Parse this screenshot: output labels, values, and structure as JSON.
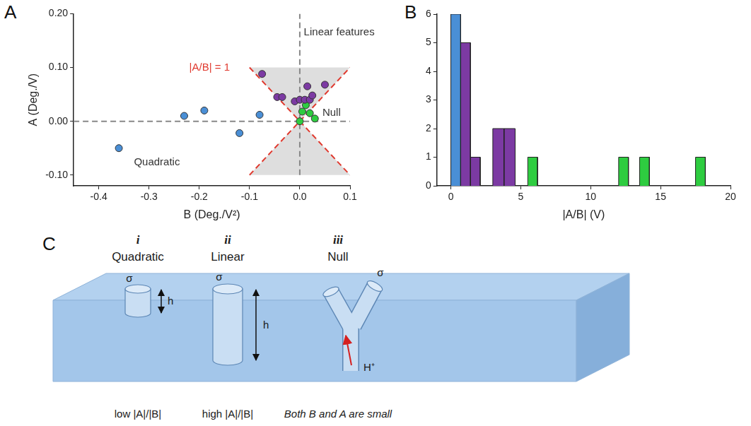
{
  "chart_data": [
    {
      "panel": "A",
      "type": "scatter",
      "x_label": "B (Deg./V²)",
      "y_label": "A (Deg./V)",
      "xlim": [
        -0.45,
        0.1
      ],
      "xticks": [
        -0.4,
        -0.3,
        -0.2,
        -0.1,
        {
          "value": 0,
          "label": "0.0"
        },
        0.1
      ],
      "ylim": [
        -0.12,
        0.2
      ],
      "yticks": [
        {
          "value": -0.1,
          "label": "-0.10"
        },
        {
          "value": 0,
          "label": "0.00"
        },
        {
          "value": 0.1,
          "label": "0.10"
        },
        {
          "value": 0.2,
          "label": "0.20"
        }
      ],
      "grid": false,
      "series": [
        {
          "color": "#4a8fd6",
          "x": [
            -0.36,
            -0.23,
            -0.19,
            -0.12,
            -0.08
          ],
          "y": [
            -0.05,
            0.01,
            0.02,
            -0.022,
            0.012
          ]
        },
        {
          "color": "#7c3aa3",
          "x": [
            -0.075,
            -0.045,
            -0.035,
            -0.01,
            0.0,
            0.01,
            0.015,
            0.02,
            0.025,
            0.05
          ],
          "y": [
            0.088,
            0.045,
            0.045,
            0.037,
            0.04,
            0.04,
            0.065,
            0.04,
            0.048,
            0.068
          ]
        },
        {
          "color": "#2ecc40",
          "x": [
            0.0,
            0.005,
            0.012,
            0.02,
            0.03
          ],
          "y": [
            0.0,
            0.018,
            0.03,
            0.015,
            0.005
          ]
        }
      ],
      "reference_lines": [
        {
          "x": [
            -0.1,
            0.1
          ],
          "y": [
            0.1,
            -0.1
          ],
          "color": "#e03a2f",
          "line_style": "dashed"
        },
        {
          "x": [
            -0.1,
            0.1
          ],
          "y": [
            -0.1,
            0.1
          ],
          "color": "#e03a2f",
          "line_style": "dashed"
        },
        {
          "x": [
            -0.45,
            0.1
          ],
          "y": [
            0,
            0
          ],
          "color": "#888888",
          "line_style": "dashed"
        },
        {
          "x": [
            0,
            0
          ],
          "y": [
            -0.1,
            0.2
          ],
          "color": "#888888",
          "line_style": "dashed"
        }
      ],
      "shaded_polygons": [
        [
          [
            -0.1,
            0.1
          ],
          [
            0.1,
            0.1
          ],
          [
            0,
            0
          ]
        ],
        [
          [
            -0.1,
            -0.1
          ],
          [
            0.1,
            -0.1
          ],
          [
            0,
            0
          ]
        ]
      ],
      "annotations": [
        {
          "text": "Linear features",
          "x": 0.008,
          "y": 0.165,
          "color": "#333333"
        },
        {
          "text": "Null",
          "x": 0.045,
          "y": 0.016,
          "color": "#333333"
        },
        {
          "text": "Quadratic",
          "x": -0.33,
          "y": -0.076,
          "color": "#333333"
        },
        {
          "text": "|A/B| = 1",
          "x": -0.22,
          "y": 0.1,
          "color": "#e03a2f"
        }
      ]
    },
    {
      "panel": "B",
      "type": "histogram",
      "x_label": "|A/B| (V)",
      "bins": [
        0,
        0.7,
        1.4,
        2.1,
        3.0,
        3.8,
        4.6,
        5.5,
        6.2,
        12.0,
        12.7,
        13.5,
        14.2,
        17.5,
        18.2
      ],
      "counts": [
        6,
        5,
        1,
        0,
        2,
        2,
        0,
        1,
        0,
        1,
        0,
        1,
        0,
        1
      ],
      "colors": [
        "#4a8fd6",
        "#7c3aa3",
        "#7c3aa3",
        "#7c3aa3",
        "#7c3aa3",
        "#7c3aa3",
        "#2ecc40",
        "#2ecc40",
        "#2ecc40",
        "#2ecc40",
        "#2ecc40",
        "#2ecc40",
        "#2ecc40",
        "#2ecc40"
      ],
      "xlim": [
        -1,
        20
      ],
      "xticks": [
        0,
        5,
        10,
        15,
        20
      ],
      "ylim": [
        0,
        6
      ],
      "yticks": [
        0,
        1,
        2,
        3,
        4,
        5,
        6
      ],
      "grid": false
    }
  ],
  "diagram": {
    "panel": "C",
    "items": [
      {
        "numeral": "i",
        "title": "Quadratic",
        "caption": "low |A|/|B|"
      },
      {
        "numeral": "ii",
        "title": "Linear",
        "caption": "high |A|/|B|"
      },
      {
        "numeral": "iii",
        "title": "Null",
        "caption": "Both B and A are small"
      }
    ],
    "surface_charge": "σ",
    "depth": "h",
    "proton": "H⁺"
  }
}
